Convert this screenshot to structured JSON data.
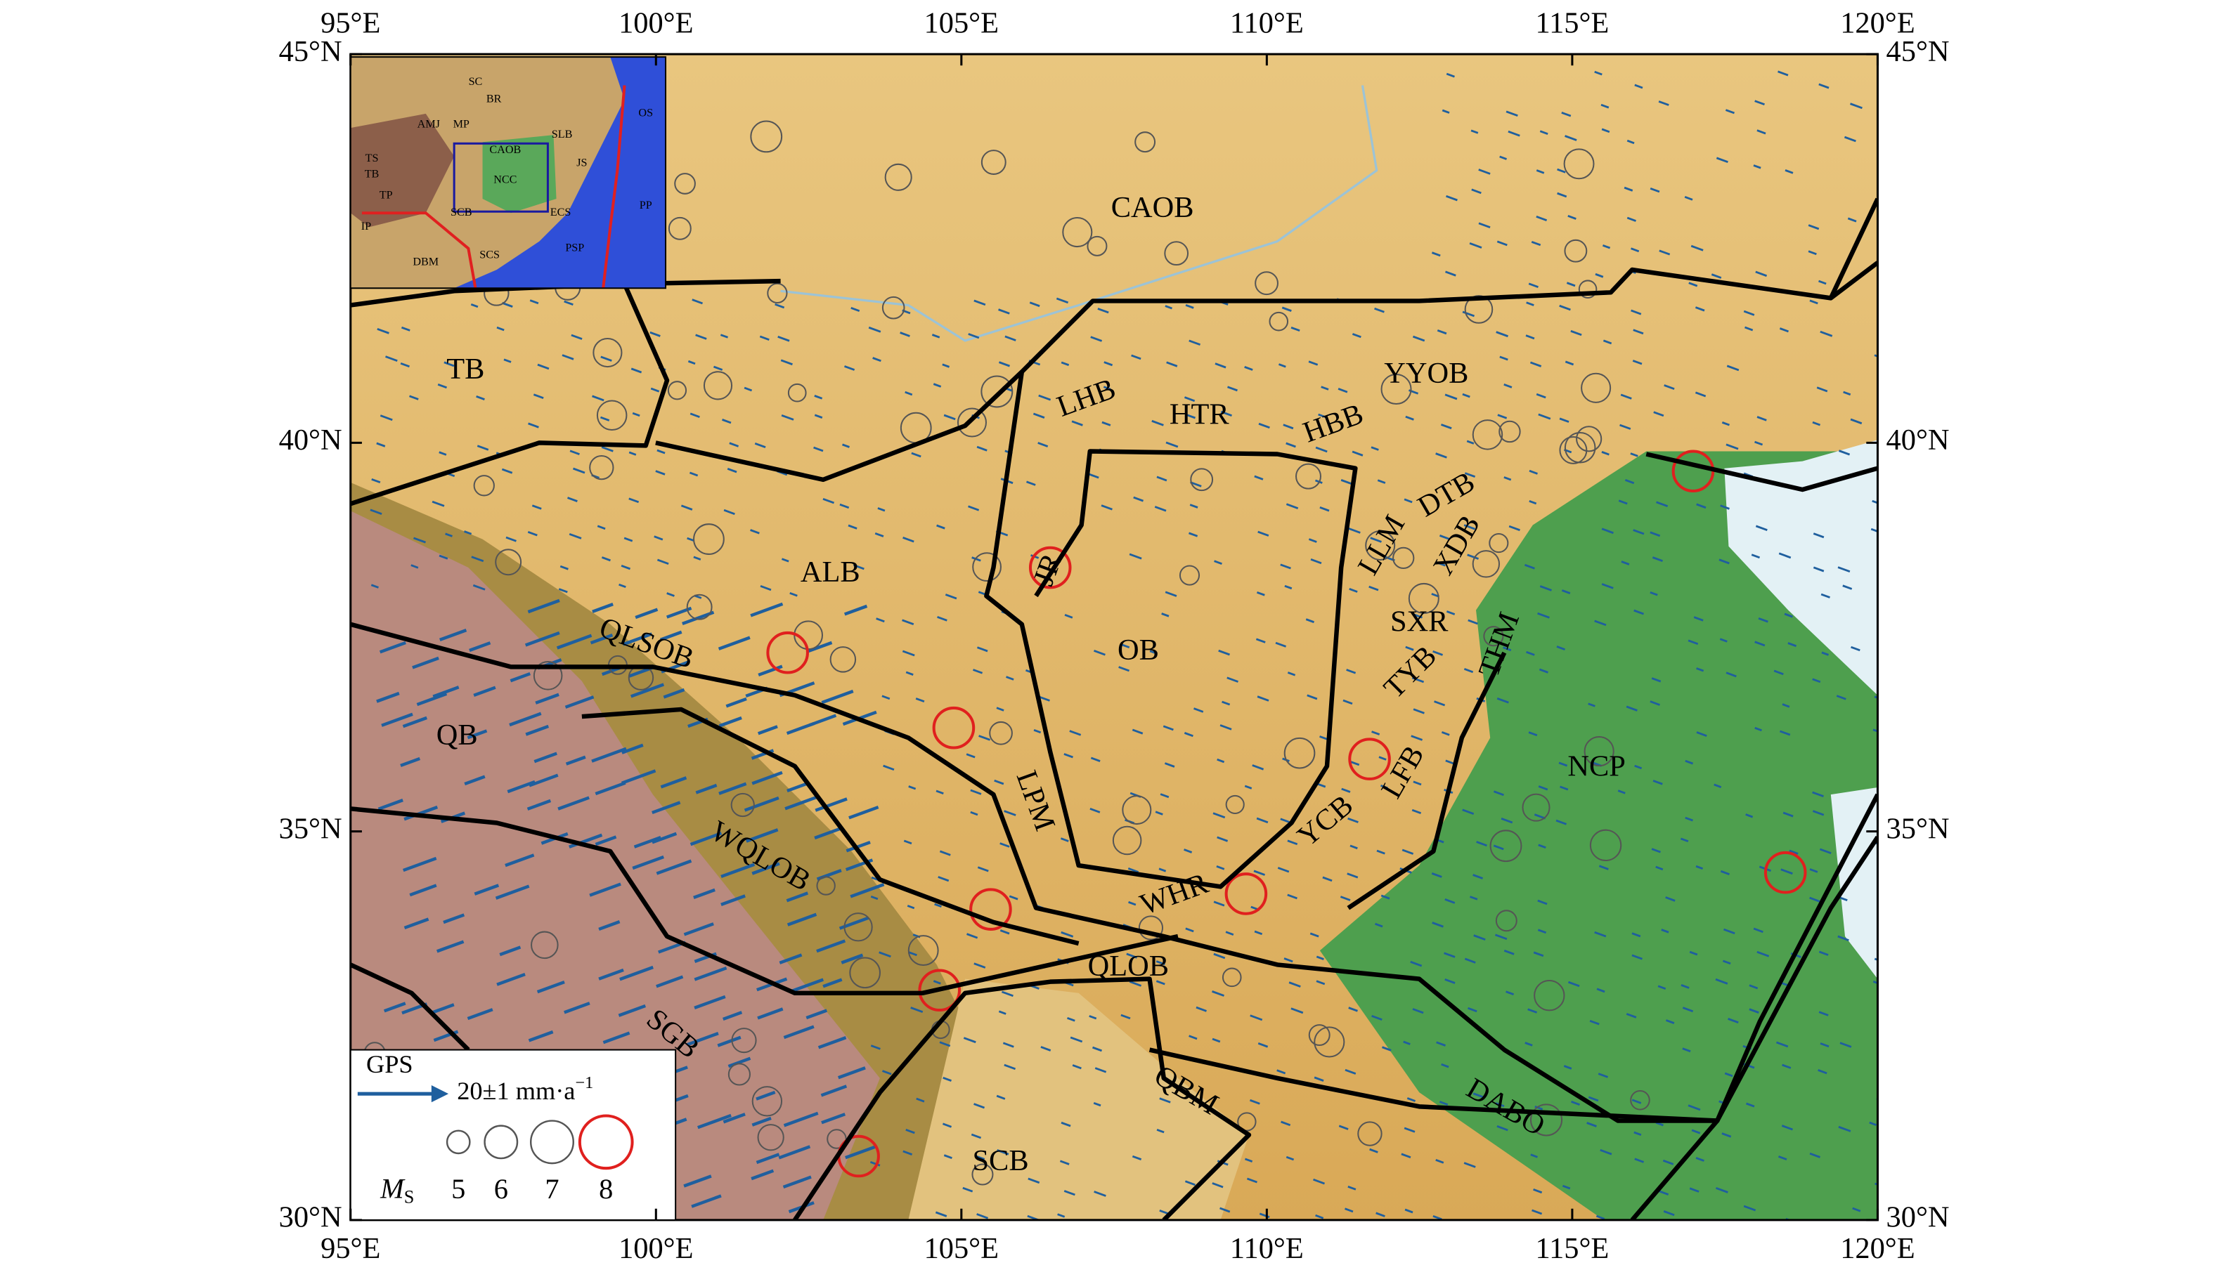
{
  "chart_data": {
    "type": "map",
    "xlim": [
      95,
      120
    ],
    "ylim": [
      30,
      45
    ],
    "xticks": [
      {
        "value": 95,
        "label": "95°E"
      },
      {
        "value": 100,
        "label": "100°E"
      },
      {
        "value": 105,
        "label": "105°E"
      },
      {
        "value": 110,
        "label": "110°E"
      },
      {
        "value": 115,
        "label": "115°E"
      },
      {
        "value": 120,
        "label": "120°E"
      }
    ],
    "yticks": [
      {
        "value": 30,
        "label": "30°N"
      },
      {
        "value": 35,
        "label": "35°N"
      },
      {
        "value": 40,
        "label": "40°N"
      },
      {
        "value": 45,
        "label": "45°N"
      }
    ],
    "regions": [
      "CAOB",
      "TB",
      "YYOB",
      "LHB",
      "HTR",
      "HBB",
      "ALB",
      "DTB",
      "LLM",
      "XDB",
      "SXR",
      "TYB",
      "THM",
      "OB",
      "QLSOB",
      "QB",
      "LPM",
      "LFB",
      "YCB",
      "NCP",
      "WQLOB",
      "WHR",
      "QLOB",
      "SGB",
      "QBM",
      "DABO",
      "SCB",
      "JR"
    ],
    "legend": {
      "gps_title": "GPS",
      "gps_scale": "20±1 mm·a",
      "gps_scale_exponent": "−1",
      "ms_symbol": "M",
      "ms_subscript": "S",
      "magnitudes": [
        5,
        6,
        7,
        8
      ]
    },
    "inset": {
      "labels": [
        "SC",
        "BR",
        "AMJ",
        "MP",
        "CAOB",
        "SLB",
        "TS",
        "TB",
        "TP",
        "NCC",
        "JS",
        "IP",
        "SCB",
        "ECS",
        "DBM",
        "SCS",
        "PSP",
        "PP",
        "OS"
      ]
    }
  }
}
